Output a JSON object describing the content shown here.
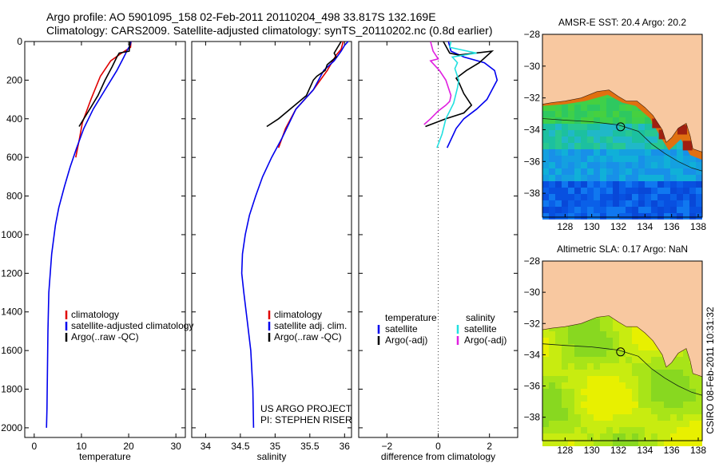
{
  "title": {
    "line1": "Argo profile: AO 5901095_158 02-Feb-2011 20110204_498 33.817S 132.169E",
    "line2": "Climatology: CARS2009. Satellite-adjusted climatology: synTS_20110202.nc (0.8d earlier)"
  },
  "colors": {
    "climatology": "#e00000",
    "satellite": "#0000ee",
    "argo": "#000000",
    "cyan": "#22e0e0",
    "magenta": "#e020e0",
    "land": "#f8c8a0"
  },
  "footer": {
    "project": "US ARGO PROJECT",
    "pi": "PI: STEPHEN RISER",
    "stamp": "CSIRO 08-Feb-2011 10:31:32"
  },
  "chart_data": [
    {
      "type": "line",
      "panel": "temperature",
      "xlabel": "temperature",
      "ylabel": "",
      "xlim": [
        -2,
        32
      ],
      "ylim": [
        2050,
        0
      ],
      "xticks": [
        0,
        10,
        20,
        30
      ],
      "yticks": [
        0,
        200,
        400,
        600,
        800,
        1000,
        1200,
        1400,
        1600,
        1800,
        2000
      ],
      "legend": [
        "climatology",
        "satellite-adjusted climatology",
        "Argo(..raw -QC)"
      ],
      "legend_position": "lower-right",
      "series": [
        {
          "name": "climatology",
          "color": "red",
          "x": [
            20.5,
            20.4,
            18.5,
            16.2,
            14.0,
            12.0,
            10.2,
            9.6,
            8.8
          ],
          "y": [
            0,
            30,
            60,
            100,
            180,
            300,
            420,
            500,
            600
          ]
        },
        {
          "name": "satellite-adjusted climatology",
          "color": "blue",
          "x": [
            20.5,
            20.3,
            19.8,
            19.0,
            17.5,
            15.0,
            12.5,
            10.5,
            9.0,
            7.6,
            6.4,
            5.2,
            4.5,
            3.7,
            3.4,
            3.1,
            2.9,
            2.8,
            2.7,
            2.6
          ],
          "y": [
            0,
            20,
            40,
            80,
            150,
            250,
            350,
            450,
            550,
            650,
            750,
            860,
            950,
            1100,
            1200,
            1300,
            1500,
            1700,
            1900,
            2000
          ]
        },
        {
          "name": "Argo(..raw -QC)",
          "color": "black",
          "x": [
            20.3,
            20.1,
            18.0,
            17.5,
            16.5,
            15.0,
            13.5,
            12.0,
            10.5,
            9.5
          ],
          "y": [
            0,
            50,
            60,
            80,
            130,
            200,
            280,
            340,
            400,
            440
          ]
        }
      ]
    },
    {
      "type": "line",
      "panel": "salinity",
      "xlabel": "salinity",
      "ylabel": "",
      "xlim": [
        33.8,
        36.1
      ],
      "ylim": [
        2050,
        0
      ],
      "xticks": [
        34,
        34.5,
        35,
        35.5,
        36
      ],
      "legend": [
        "climatology",
        "satellite adj. clim.",
        "Argo(..raw -QC)"
      ],
      "legend_position": "lower-right",
      "series": [
        {
          "name": "climatology",
          "color": "red",
          "x": [
            35.98,
            35.95,
            35.88,
            35.75,
            35.55,
            35.3,
            35.15,
            35.05
          ],
          "y": [
            0,
            40,
            70,
            150,
            250,
            350,
            450,
            550
          ]
        },
        {
          "name": "satellite adj. clim.",
          "color": "blue",
          "x": [
            36.05,
            36.0,
            35.95,
            35.85,
            35.7,
            35.55,
            35.3,
            35.1,
            34.95,
            34.82,
            34.72,
            34.63,
            34.57,
            34.53,
            34.52,
            34.55,
            34.6,
            34.65,
            34.68,
            34.69
          ],
          "y": [
            0,
            20,
            50,
            100,
            150,
            250,
            350,
            500,
            600,
            700,
            800,
            900,
            1000,
            1100,
            1200,
            1300,
            1450,
            1600,
            1800,
            2000
          ]
        },
        {
          "name": "Argo(..raw -QC)",
          "color": "black",
          "x": [
            35.95,
            35.85,
            35.88,
            35.75,
            35.72,
            35.6,
            35.55,
            35.45,
            35.25,
            35.05,
            34.88
          ],
          "y": [
            0,
            60,
            80,
            120,
            150,
            180,
            200,
            280,
            340,
            400,
            440
          ]
        }
      ]
    },
    {
      "type": "line",
      "panel": "difference",
      "xlabel": "difference from climatology",
      "ylabel": "",
      "xlim": [
        -3.1,
        3.1
      ],
      "ylim": [
        2050,
        0
      ],
      "xticks": [
        -2,
        0,
        2
      ],
      "legend_titles": [
        "temperature",
        "salinity"
      ],
      "legend": [
        "satellite",
        "Argo(-adj)",
        "satellite",
        "Argo(-adj)"
      ],
      "legend_position": "lower-center",
      "series": [
        {
          "name": "temperature satellite",
          "color": "blue",
          "x": [
            0.4,
            0.5,
            1.0,
            1.8,
            2.2,
            2.3,
            2.1,
            1.9,
            1.5,
            1.0,
            0.7,
            0.35
          ],
          "y": [
            0,
            50,
            80,
            110,
            150,
            200,
            250,
            300,
            350,
            400,
            450,
            550
          ]
        },
        {
          "name": "temperature Argo(-adj)",
          "color": "black",
          "x": [
            0.2,
            0.45,
            0.8,
            2.1,
            1.6,
            1.1,
            0.7,
            0.8,
            1.0,
            1.3,
            1.0,
            0.3,
            -0.5
          ],
          "y": [
            0,
            60,
            70,
            50,
            110,
            150,
            190,
            210,
            270,
            330,
            370,
            400,
            440
          ]
        },
        {
          "name": "salinity satellite",
          "color": "cyan",
          "x": [
            0.5,
            0.45,
            1.5,
            0.55,
            0.75,
            0.65,
            0.8,
            0.75,
            0.6,
            0.3,
            0.15,
            -0.05
          ],
          "y": [
            0,
            30,
            60,
            80,
            110,
            140,
            200,
            240,
            320,
            400,
            480,
            550
          ]
        },
        {
          "name": "salinity Argo(-adj)",
          "color": "magenta",
          "x": [
            -0.3,
            -0.2,
            0.0,
            -0.3,
            0.05,
            0.3,
            0.5,
            0.45,
            0.3,
            0.0,
            -0.3,
            -0.55
          ],
          "y": [
            0,
            50,
            90,
            100,
            150,
            200,
            280,
            310,
            330,
            360,
            400,
            430
          ]
        }
      ]
    },
    {
      "type": "heatmap",
      "panel": "map-sst",
      "title": "AMSR-E SST: 20.4  Argo: 20.2",
      "xlim": [
        126.3,
        138.3
      ],
      "ylim": [
        -39.5,
        -28
      ],
      "xticks": [
        128,
        130,
        132,
        134,
        136,
        138
      ],
      "yticks": [
        -28,
        -30,
        -32,
        -34,
        -36,
        -38
      ],
      "marker": {
        "lon": 132.169,
        "lat": -33.817
      }
    },
    {
      "type": "heatmap",
      "panel": "map-sla",
      "title": "Altimetric SLA: 0.17  Argo: NaN",
      "xlim": [
        126.3,
        138.3
      ],
      "ylim": [
        -39.5,
        -28
      ],
      "xticks": [
        128,
        130,
        132,
        134,
        136,
        138
      ],
      "yticks": [
        -28,
        -30,
        -32,
        -34,
        -36,
        -38
      ],
      "marker": {
        "lon": 132.169,
        "lat": -33.817
      }
    }
  ]
}
